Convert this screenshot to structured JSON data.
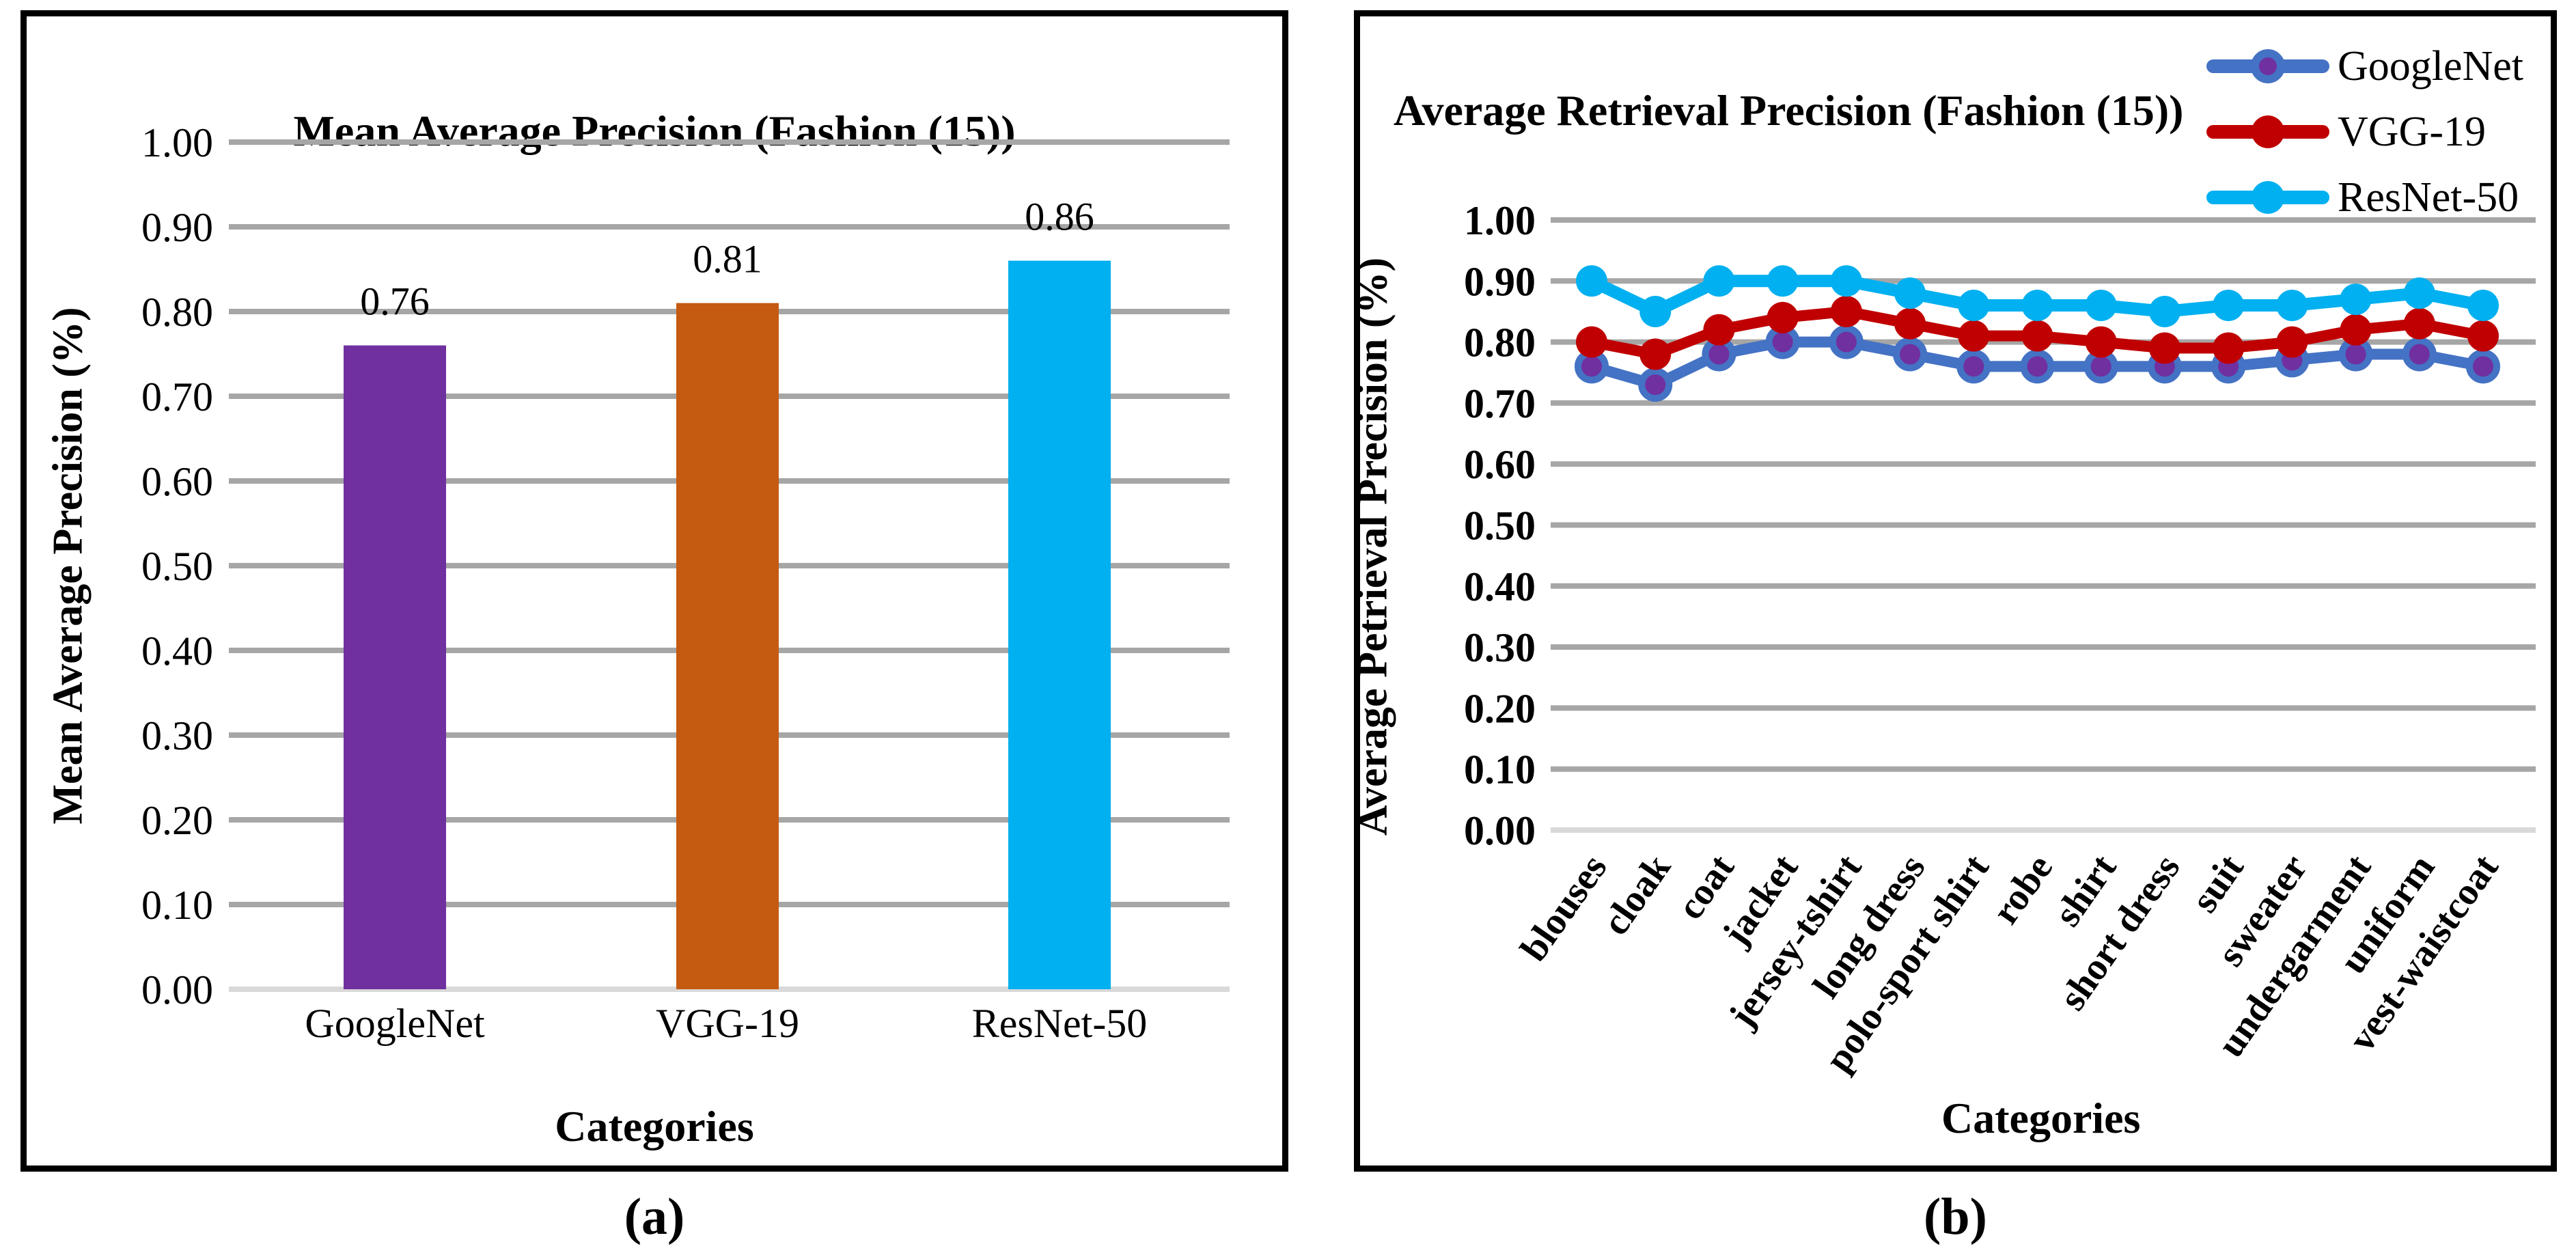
{
  "figure": {
    "caption_a": "(a)",
    "caption_b": "(b)",
    "colors": {
      "gridline": "#A6A6A6",
      "zero_gridline": "#D9D9D9",
      "panel_border": "#000000",
      "googlenet_bar": "#7030A0",
      "vgg19_bar": "#C55A11",
      "resnet50_bar": "#00B0F0",
      "googlenet_line": "#4472C4",
      "googlenet_marker": "#7030A0",
      "vgg19_line": "#C00000",
      "resnet50_line": "#00B0F0"
    },
    "chart_data": [
      {
        "type": "bar",
        "title": "Mean Average Precision (Fashion (15))",
        "ylabel": "Mean Average Precision (%)",
        "xlabel": "Categories",
        "categories": [
          "GoogleNet",
          "VGG-19",
          "ResNet-50"
        ],
        "values": [
          0.76,
          0.81,
          0.86
        ],
        "value_labels": [
          "0.76",
          "0.81",
          "0.86"
        ],
        "bar_colors": [
          "#7030A0",
          "#C55A11",
          "#00B0F0"
        ],
        "yticks": [
          "0.00",
          "0.10",
          "0.20",
          "0.30",
          "0.40",
          "0.50",
          "0.60",
          "0.70",
          "0.80",
          "0.90",
          "1.00"
        ],
        "ylim": [
          0.0,
          1.0
        ],
        "grid": true,
        "legend_position": "none"
      },
      {
        "type": "line",
        "title": "Average Retrieval Precision (Fashion (15))",
        "ylabel": "Average Petrieval Precision (%)",
        "xlabel": "Categories",
        "categories": [
          "blouses",
          "cloak",
          "coat",
          "jacket",
          "jersey-tshirt",
          "long dress",
          "polo-sport shirt",
          "robe",
          "shirt",
          "short dress",
          "suit",
          "sweater",
          "undergarment",
          "uniform",
          "vest-waistcoat"
        ],
        "series": [
          {
            "name": "GoogleNet",
            "color": "#4472C4",
            "marker_fill": "#7030A0",
            "marker_ring": "#4472C4",
            "values": [
              0.76,
              0.73,
              0.78,
              0.8,
              0.8,
              0.78,
              0.76,
              0.76,
              0.76,
              0.76,
              0.76,
              0.77,
              0.78,
              0.78,
              0.76
            ]
          },
          {
            "name": "VGG-19",
            "color": "#C00000",
            "marker_fill": "#C00000",
            "marker_ring": "#C00000",
            "values": [
              0.8,
              0.78,
              0.82,
              0.84,
              0.85,
              0.83,
              0.81,
              0.81,
              0.8,
              0.79,
              0.79,
              0.8,
              0.82,
              0.83,
              0.81
            ]
          },
          {
            "name": "ResNet-50",
            "color": "#00B0F0",
            "marker_fill": "#00B0F0",
            "marker_ring": "#00B0F0",
            "values": [
              0.9,
              0.85,
              0.9,
              0.9,
              0.9,
              0.88,
              0.86,
              0.86,
              0.86,
              0.85,
              0.86,
              0.86,
              0.87,
              0.88,
              0.86
            ]
          }
        ],
        "yticks": [
          "0.00",
          "0.10",
          "0.20",
          "0.30",
          "0.40",
          "0.50",
          "0.60",
          "0.70",
          "0.80",
          "0.90",
          "1.00"
        ],
        "ylim": [
          0.0,
          1.0
        ],
        "grid": true,
        "legend_position": "top-right"
      }
    ]
  }
}
